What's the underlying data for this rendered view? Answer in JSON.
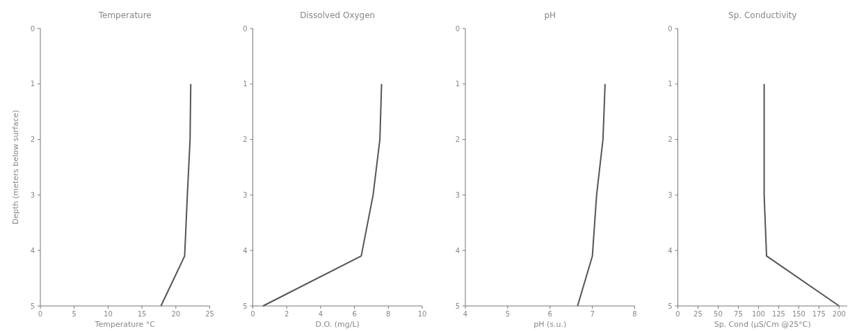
{
  "chart_data": [
    {
      "type": "line",
      "title": "Temperature",
      "xlabel": "Temperature °C",
      "ylabel": "Depth (meters below surface)",
      "xlim": [
        0,
        25
      ],
      "xticks": [
        0,
        5,
        10,
        15,
        20,
        25
      ],
      "ylim": [
        5,
        0
      ],
      "yticks": [
        0,
        1,
        2,
        3,
        4,
        5
      ],
      "marker": "none",
      "line_style": "solid",
      "series": [
        {
          "color": "#555555",
          "x": [
            22.2,
            22.1,
            21.7,
            21.3,
            17.8
          ],
          "values": [
            1,
            2,
            3,
            4.1,
            5
          ]
        }
      ]
    },
    {
      "type": "line",
      "title": "Dissolved Oxygen",
      "xlabel": "D.O. (mg/L)",
      "xlim": [
        0,
        10
      ],
      "xticks": [
        0,
        2,
        4,
        6,
        8,
        10
      ],
      "ylim": [
        5,
        0
      ],
      "yticks": [
        0,
        1,
        2,
        3,
        4,
        5
      ],
      "marker": "none",
      "line_style": "solid",
      "series": [
        {
          "color": "#555555",
          "x": [
            7.6,
            7.5,
            7.1,
            6.4,
            0.6
          ],
          "values": [
            1,
            2,
            3,
            4.1,
            5
          ]
        }
      ]
    },
    {
      "type": "line",
      "title": "pH",
      "xlabel": "pH (s.u.)",
      "xlim": [
        4,
        8
      ],
      "xticks": [
        4,
        5,
        6,
        7,
        8
      ],
      "ylim": [
        5,
        0
      ],
      "yticks": [
        0,
        1,
        2,
        3,
        4,
        5
      ],
      "marker": "none",
      "line_style": "solid",
      "series": [
        {
          "color": "#555555",
          "x": [
            7.3,
            7.25,
            7.1,
            7.0,
            6.65
          ],
          "values": [
            1,
            2,
            3,
            4.1,
            5
          ]
        }
      ]
    },
    {
      "type": "line",
      "title": "Sp. Conductivity",
      "xlabel": "Sp. Cond (µS/Cm @25°C)",
      "xlim": [
        0,
        210
      ],
      "xticks": [
        0,
        25,
        50,
        75,
        100,
        125,
        150,
        175,
        200
      ],
      "ylim": [
        5,
        0
      ],
      "yticks": [
        0,
        1,
        2,
        3,
        4,
        5
      ],
      "marker": "none",
      "line_style": "solid",
      "series": [
        {
          "color": "#555555",
          "x": [
            107,
            107,
            107,
            110,
            200
          ],
          "values": [
            1,
            2,
            3,
            4.1,
            5
          ]
        }
      ]
    }
  ]
}
